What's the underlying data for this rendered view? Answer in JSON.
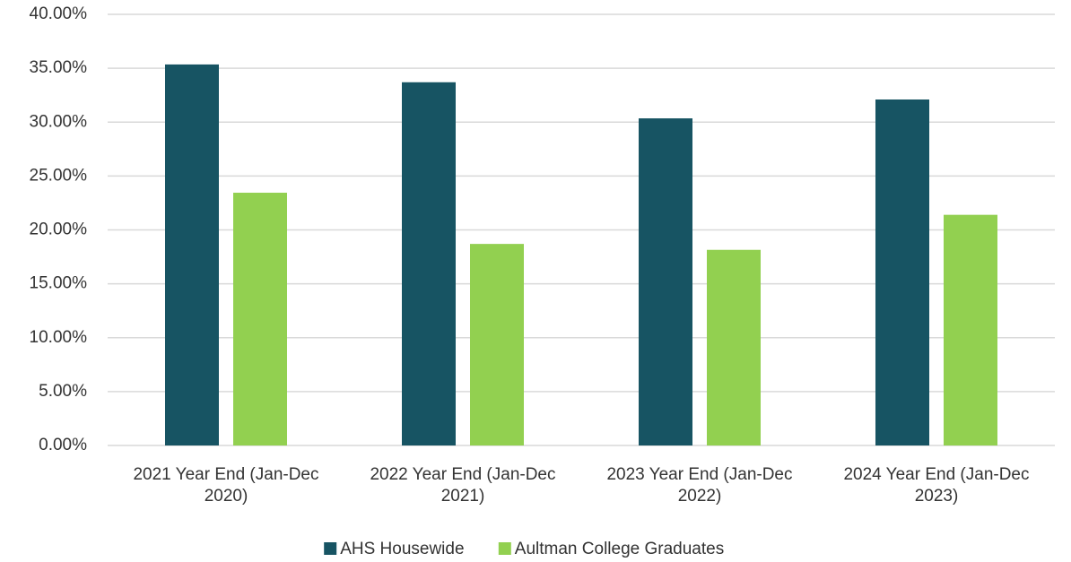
{
  "chart_data": {
    "type": "bar",
    "categories": [
      "2021 Year End (Jan-Dec 2020)",
      "2022 Year End (Jan-Dec 2021)",
      "2023 Year End (Jan-Dec 2022)",
      "2024 Year End (Jan-Dec 2023)"
    ],
    "series": [
      {
        "name": "AHS Housewide",
        "color": "#175463",
        "values": [
          35.35,
          33.7,
          30.35,
          32.1
        ]
      },
      {
        "name": "Aultman College Graduates",
        "color": "#92d050",
        "values": [
          23.45,
          18.7,
          18.15,
          21.4
        ]
      }
    ],
    "ylim": [
      0,
      40
    ],
    "yticks": [
      {
        "value": 0,
        "label": "0.00%"
      },
      {
        "value": 5,
        "label": "5.00%"
      },
      {
        "value": 10,
        "label": "10.00%"
      },
      {
        "value": 15,
        "label": "15.00%"
      },
      {
        "value": 20,
        "label": "20.00%"
      },
      {
        "value": 25,
        "label": "25.00%"
      },
      {
        "value": 30,
        "label": "30.00%"
      },
      {
        "value": 35,
        "label": "35.00%"
      },
      {
        "value": 40,
        "label": "40.00%"
      }
    ],
    "grid": true,
    "legend": "bottom"
  }
}
